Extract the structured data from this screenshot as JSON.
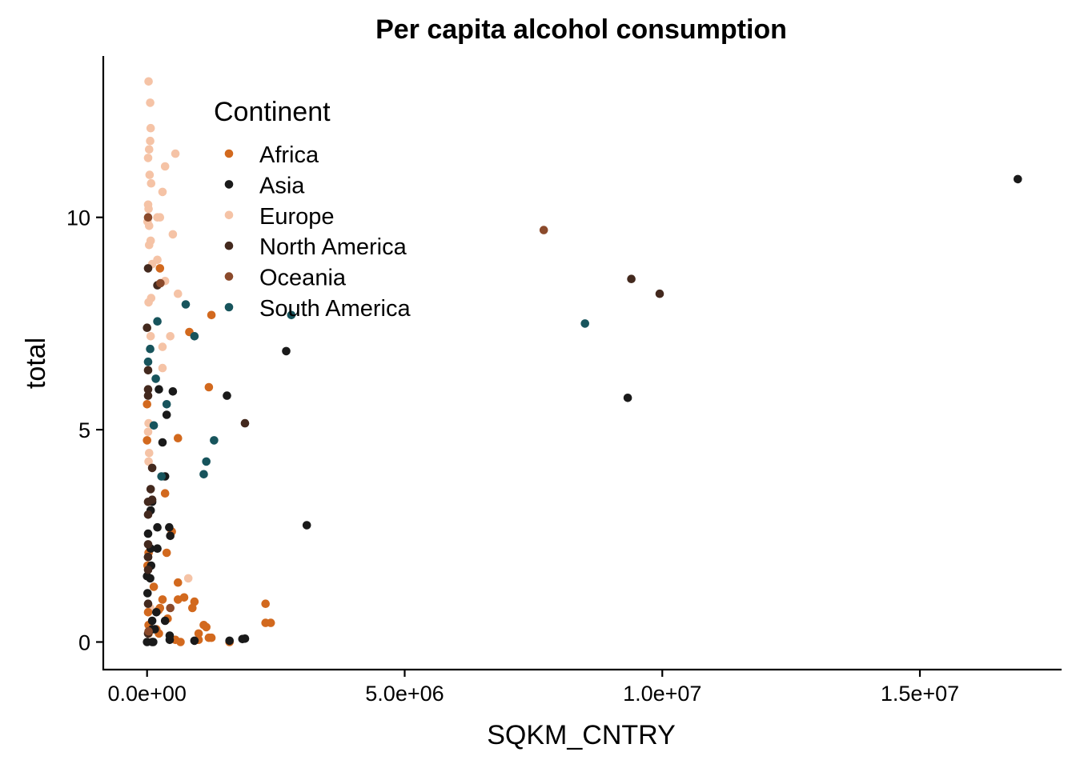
{
  "chart_data": {
    "type": "scatter",
    "title": "Per capita alcohol consumption",
    "xlabel": "SQKM_CNTRY",
    "ylabel": "total",
    "xlim": [
      -850000,
      17750000
    ],
    "ylim": [
      -0.65,
      13.8
    ],
    "x_ticks": [
      {
        "value": 0,
        "label": "0.0e+00"
      },
      {
        "value": 5000000,
        "label": "5.0e+06"
      },
      {
        "value": 10000000,
        "label": "1.0e+07"
      },
      {
        "value": 15000000,
        "label": "1.5e+07"
      }
    ],
    "y_ticks": [
      {
        "value": 0,
        "label": "0"
      },
      {
        "value": 5,
        "label": "5"
      },
      {
        "value": 10,
        "label": "10"
      }
    ],
    "grid": false,
    "legend": {
      "title": "Continent",
      "placement": "top-left",
      "entries": [
        {
          "name": "Africa",
          "color": "#D2691E"
        },
        {
          "name": "Asia",
          "color": "#1a1a1a"
        },
        {
          "name": "Europe",
          "color": "#F5C3A6"
        },
        {
          "name": "North America",
          "color": "#43291E"
        },
        {
          "name": "Oceania",
          "color": "#8B4A2B"
        },
        {
          "name": "South America",
          "color": "#17545C"
        }
      ]
    },
    "series": [
      {
        "name": "Europe",
        "color": "#F5C3A6",
        "points": [
          [
            30000,
            13.2
          ],
          [
            60000,
            12.7
          ],
          [
            70000,
            12.1
          ],
          [
            60000,
            11.8
          ],
          [
            40000,
            11.6
          ],
          [
            20000,
            11.4
          ],
          [
            550000,
            11.5
          ],
          [
            350000,
            11.2
          ],
          [
            50000,
            11.0
          ],
          [
            80000,
            10.8
          ],
          [
            300000,
            10.6
          ],
          [
            20000,
            10.3
          ],
          [
            30000,
            10.2
          ],
          [
            250000,
            10.0
          ],
          [
            200000,
            10.0
          ],
          [
            10000,
            9.9
          ],
          [
            40000,
            9.8
          ],
          [
            500000,
            9.6
          ],
          [
            70000,
            9.45
          ],
          [
            40000,
            9.35
          ],
          [
            200000,
            9.0
          ],
          [
            100000,
            8.9
          ],
          [
            350000,
            8.5
          ],
          [
            600000,
            8.2
          ],
          [
            80000,
            8.1
          ],
          [
            30000,
            8.0
          ],
          [
            450000,
            7.2
          ],
          [
            70000,
            7.2
          ],
          [
            300000,
            6.95
          ],
          [
            300000,
            6.45
          ],
          [
            30000,
            5.15
          ],
          [
            20000,
            4.95
          ],
          [
            40000,
            4.45
          ],
          [
            30000,
            4.25
          ],
          [
            800000,
            1.5
          ],
          [
            60000,
            0.8
          ]
        ]
      },
      {
        "name": "Africa",
        "color": "#D2691E",
        "points": [
          [
            250000,
            8.8
          ],
          [
            1250000,
            7.7
          ],
          [
            820000,
            7.3
          ],
          [
            1200000,
            6.0
          ],
          [
            0,
            5.6
          ],
          [
            600000,
            4.8
          ],
          [
            0,
            4.75
          ],
          [
            350000,
            3.5
          ],
          [
            480000,
            2.6
          ],
          [
            380000,
            2.1
          ],
          [
            30000,
            2.1
          ],
          [
            10000,
            1.8
          ],
          [
            130000,
            1.3
          ],
          [
            600000,
            1.4
          ],
          [
            720000,
            1.05
          ],
          [
            920000,
            0.95
          ],
          [
            600000,
            1.0
          ],
          [
            300000,
            1.0
          ],
          [
            2300000,
            0.9
          ],
          [
            880000,
            0.8
          ],
          [
            220000,
            0.75
          ],
          [
            20000,
            0.7
          ],
          [
            400000,
            0.55
          ],
          [
            2400000,
            0.45
          ],
          [
            2300000,
            0.45
          ],
          [
            1100000,
            0.4
          ],
          [
            1150000,
            0.35
          ],
          [
            230000,
            0.2
          ],
          [
            30000,
            0.2
          ],
          [
            1000000,
            0.2
          ],
          [
            1200000,
            0.1
          ],
          [
            1250000,
            0.1
          ],
          [
            550000,
            0.05
          ],
          [
            1000000,
            0.05
          ],
          [
            650000,
            0.0
          ],
          [
            1600000,
            0.0
          ],
          [
            180000,
            0.3
          ],
          [
            30000,
            0.4
          ],
          [
            250000,
            0.8
          ]
        ]
      },
      {
        "name": "Asia",
        "color": "#1a1a1a",
        "points": [
          [
            16900000,
            10.9
          ],
          [
            2700000,
            6.85
          ],
          [
            1550000,
            5.8
          ],
          [
            9330000,
            5.75
          ],
          [
            230000,
            5.95
          ],
          [
            500000,
            5.9
          ],
          [
            380000,
            5.35
          ],
          [
            300000,
            4.7
          ],
          [
            350000,
            3.9
          ],
          [
            100000,
            3.3
          ],
          [
            70000,
            3.1
          ],
          [
            3100000,
            2.75
          ],
          [
            430000,
            2.7
          ],
          [
            200000,
            2.7
          ],
          [
            20000,
            2.55
          ],
          [
            450000,
            2.5
          ],
          [
            70000,
            2.2
          ],
          [
            200000,
            2.2
          ],
          [
            20000,
            2.0
          ],
          [
            80000,
            1.8
          ],
          [
            0,
            1.55
          ],
          [
            10000,
            1.15
          ],
          [
            100000,
            0.5
          ],
          [
            350000,
            0.5
          ],
          [
            150000,
            0.3
          ],
          [
            100000,
            0.3
          ],
          [
            1850000,
            0.07
          ],
          [
            1900000,
            0.08
          ],
          [
            0,
            0.0
          ],
          [
            120000,
            0.0
          ],
          [
            920000,
            0.03
          ],
          [
            440000,
            0.05
          ],
          [
            440000,
            0.15
          ],
          [
            1600000,
            0.03
          ],
          [
            180000,
            0.7
          ],
          [
            60000,
            1.5
          ],
          [
            100000,
            0.0
          ]
        ]
      },
      {
        "name": "North America",
        "color": "#43291E",
        "points": [
          [
            9400000,
            8.55
          ],
          [
            9950000,
            8.2
          ],
          [
            1900000,
            5.15
          ],
          [
            20000,
            8.8
          ],
          [
            0,
            7.4
          ],
          [
            20000,
            6.4
          ],
          [
            20000,
            5.95
          ],
          [
            20000,
            5.8
          ],
          [
            100000,
            4.1
          ],
          [
            70000,
            3.6
          ],
          [
            100000,
            3.35
          ],
          [
            20000,
            3.3
          ],
          [
            20000,
            3.0
          ],
          [
            20000,
            2.3
          ],
          [
            20000,
            2.0
          ],
          [
            20000,
            1.7
          ],
          [
            20000,
            0.9
          ],
          [
            20000,
            0.2
          ],
          [
            200000,
            8.4
          ]
        ]
      },
      {
        "name": "Oceania",
        "color": "#8B4A2B",
        "points": [
          [
            7700000,
            9.7
          ],
          [
            260000,
            8.45
          ],
          [
            20000,
            10.0
          ],
          [
            450000,
            0.8
          ],
          [
            30000,
            0.25
          ]
        ]
      },
      {
        "name": "South America",
        "color": "#17545C",
        "points": [
          [
            8500000,
            7.5
          ],
          [
            2800000,
            7.7
          ],
          [
            750000,
            7.95
          ],
          [
            920000,
            7.2
          ],
          [
            200000,
            7.55
          ],
          [
            60000,
            6.9
          ],
          [
            20000,
            6.6
          ],
          [
            170000,
            6.2
          ],
          [
            380000,
            5.6
          ],
          [
            130000,
            5.1
          ],
          [
            1300000,
            4.75
          ],
          [
            1150000,
            4.25
          ],
          [
            1100000,
            3.95
          ],
          [
            280000,
            3.9
          ]
        ]
      }
    ]
  }
}
